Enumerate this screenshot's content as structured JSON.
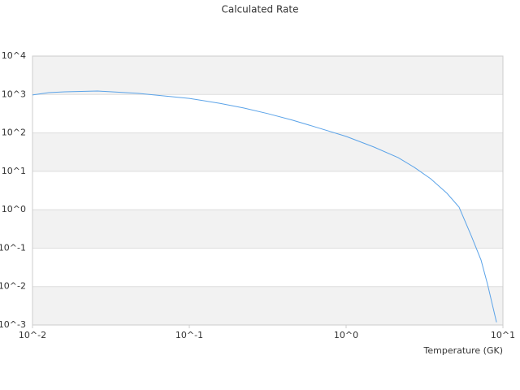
{
  "chart_data": {
    "type": "line",
    "title": "Calculated Rate",
    "x_label": "Temperature (GK)",
    "x": [
      0.01,
      0.0127,
      0.0161,
      0.026,
      0.047,
      0.1,
      0.156,
      0.222,
      0.318,
      0.455,
      0.65,
      1.0,
      1.5,
      2.15,
      2.72,
      3.46,
      4.39,
      5.25,
      6.28,
      7.25,
      7.98,
      9.1
    ],
    "values": [
      970,
      1120,
      1175,
      1230,
      1070,
      790,
      590,
      445,
      316,
      215,
      139,
      81,
      43,
      22.7,
      12.7,
      6.4,
      2.7,
      1.17,
      0.21,
      0.049,
      0.0114,
      0.00118
    ],
    "color": "#5ba3e8",
    "x_log": true,
    "y_log": true,
    "xlim": [
      0.01,
      10
    ],
    "ylim": [
      0.001,
      10000
    ],
    "xticks": [
      {
        "value": 0.01,
        "label": "10^-2"
      },
      {
        "value": 0.1,
        "label": "10^-1"
      },
      {
        "value": 1,
        "label": "10^0"
      },
      {
        "value": 10,
        "label": "10^1"
      }
    ],
    "yticks": [
      {
        "value": 0.001,
        "label": "10^-3"
      },
      {
        "value": 0.01,
        "label": "10^-2"
      },
      {
        "value": 0.1,
        "label": "10^-1"
      },
      {
        "value": 1,
        "label": "10^0"
      },
      {
        "value": 10,
        "label": "10^1"
      },
      {
        "value": 100,
        "label": "10^2"
      },
      {
        "value": 1000,
        "label": "10^3"
      },
      {
        "value": 10000,
        "label": "10^4"
      }
    ],
    "grid": true,
    "grid_band_color": "#f2f2f2"
  }
}
